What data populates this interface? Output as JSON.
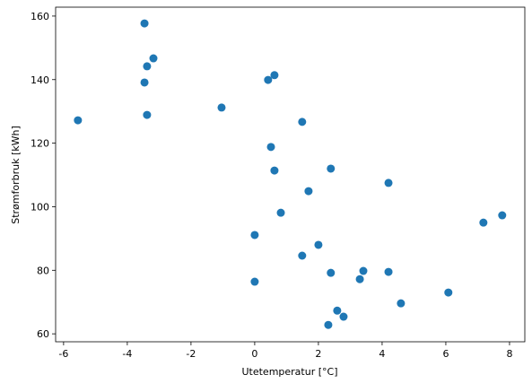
{
  "chart_data": {
    "type": "scatter",
    "xlabel": "Utetemperatur [$^\\circ$C]",
    "ylabel": "Strømforbruk [kWh]",
    "color": "#1f77b4",
    "x": [
      -3.46,
      -3.18,
      -3.38,
      -3.46,
      0.62,
      0.42,
      -5.55,
      -3.38,
      -1.04,
      1.49,
      0.51,
      2.39,
      0.62,
      4.2,
      1.69,
      0.82,
      7.77,
      7.18,
      0.0,
      2.0,
      1.49,
      3.41,
      2.39,
      4.2,
      3.3,
      0.0,
      6.08,
      4.59,
      2.59,
      2.79,
      2.31
    ],
    "values": [
      157.7,
      146.7,
      144.2,
      139.1,
      141.4,
      139.9,
      127.2,
      128.9,
      131.2,
      126.7,
      118.8,
      112.0,
      111.4,
      107.5,
      104.9,
      98.1,
      97.3,
      95.0,
      91.1,
      88.0,
      84.6,
      79.8,
      79.2,
      79.5,
      77.2,
      76.4,
      73.0,
      69.6,
      67.3,
      65.4,
      62.8
    ],
    "xlim": [
      -6.25,
      8.48
    ],
    "ylim": [
      57.5,
      162.8
    ],
    "xticks": [
      -6,
      -4,
      -2,
      0,
      2,
      4,
      6,
      8
    ],
    "yticks": [
      60,
      80,
      100,
      120,
      140,
      160
    ]
  }
}
